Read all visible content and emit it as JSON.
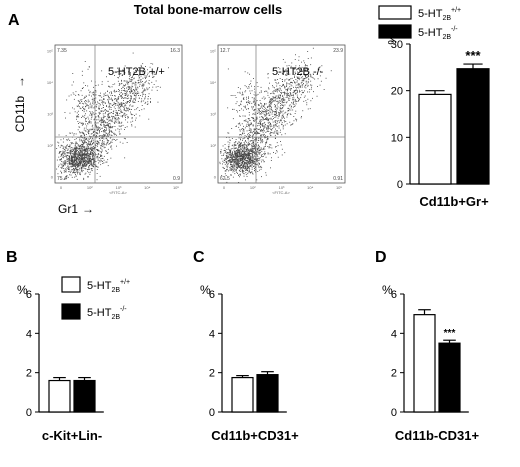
{
  "title": "Total bone-marrow cells",
  "colors": {
    "wt": "#ffffff",
    "ko": "#000000",
    "dots": "#444444",
    "gate": "#888888"
  },
  "flow": {
    "y_axis": "CD11b",
    "x_axis": "Gr1",
    "axis_arrow": "→",
    "plots": [
      {
        "sample": "5-HT2B +/+",
        "q_ul": "7.35",
        "q_ur": "16.3",
        "q_ll": "75.4",
        "q_lr": "0.9",
        "ylabel": "<PE-A>",
        "xlabel": "<FITC-A>",
        "ticks_y": [
          "10⁵",
          "10⁴",
          "10³",
          "10²",
          "0"
        ],
        "ticks_x": [
          "0",
          "10²",
          "10³",
          "10⁴",
          "10⁵"
        ]
      },
      {
        "sample": "5-HT2B -/-",
        "q_ul": "12.7",
        "q_ur": "23.9",
        "q_ll": "62.5",
        "q_lr": "0.91",
        "ylabel": "<PE-A>",
        "xlabel": "<FITC-A>",
        "ticks_y": [
          "10⁵",
          "10⁴",
          "10³",
          "10²",
          "0"
        ],
        "ticks_x": [
          "0",
          "10²",
          "10³",
          "10⁴",
          "10⁵"
        ]
      }
    ]
  },
  "chart_data": [
    {
      "panel": "A",
      "type": "bar",
      "categories": [
        "5-HT2B+/+",
        "5-HT2B-/-"
      ],
      "values": [
        19.2,
        24.7
      ],
      "errors": [
        0.8,
        1.0
      ],
      "xlabel": "Cd11b+Gr+",
      "ylabel": "%",
      "ylim": [
        0,
        30
      ],
      "yticks": [
        0,
        10,
        20,
        30
      ],
      "significance": [
        "",
        "***"
      ],
      "legend": {
        "wt_base": "5-HT",
        "wt_sub": "2B",
        "wt_sup": "+/+",
        "ko_base": "5-HT",
        "ko_sub": "2B",
        "ko_sup": "-/-",
        "position": "top"
      }
    },
    {
      "panel": "B",
      "type": "bar",
      "categories": [
        "5-HT2B+/+",
        "5-HT2B-/-"
      ],
      "values": [
        1.6,
        1.6
      ],
      "errors": [
        0.15,
        0.15
      ],
      "xlabel": "c-Kit+Lin-",
      "ylabel": "%",
      "ylim": [
        0,
        6
      ],
      "yticks": [
        0,
        2,
        4,
        6
      ],
      "significance": [
        "",
        ""
      ],
      "legend": {
        "wt_base": "5-HT",
        "wt_sub": "2B",
        "wt_sup": "+/+",
        "ko_base": "5-HT",
        "ko_sub": "2B",
        "ko_sup": "-/-",
        "position": "top"
      }
    },
    {
      "panel": "C",
      "type": "bar",
      "categories": [
        "5-HT2B+/+",
        "5-HT2B-/-"
      ],
      "values": [
        1.75,
        1.9
      ],
      "errors": [
        0.1,
        0.15
      ],
      "xlabel": "Cd11b+CD31+",
      "ylabel": "%",
      "ylim": [
        0,
        6
      ],
      "yticks": [
        0,
        2,
        4,
        6
      ],
      "significance": [
        "",
        ""
      ]
    },
    {
      "panel": "D",
      "type": "bar",
      "categories": [
        "5-HT2B+/+",
        "5-HT2B-/-"
      ],
      "values": [
        4.95,
        3.5
      ],
      "errors": [
        0.25,
        0.15
      ],
      "xlabel": "Cd11b-CD31+",
      "ylabel": "%",
      "ylim": [
        0,
        6
      ],
      "yticks": [
        0,
        2,
        4,
        6
      ],
      "significance": [
        "",
        "***"
      ]
    }
  ]
}
